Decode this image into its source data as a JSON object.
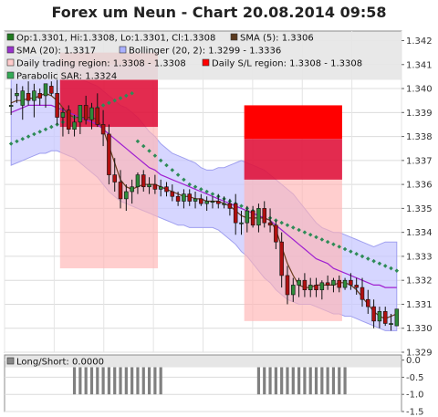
{
  "chart_data": [
    {
      "type": "candlestick",
      "title": "Forex um Neun - Chart 20.08.2014 09:58",
      "y_ticks": [
        "1.342",
        "1.341",
        "1.340",
        "1.339",
        "1.338",
        "1.337",
        "1.336",
        "1.335",
        "1.334",
        "1.333",
        "1.332",
        "1.331",
        "1.330",
        "1.329"
      ],
      "ylim": [
        1.329,
        1.3424
      ],
      "grid": true,
      "legend_position": "top",
      "legend": [
        {
          "text": "Op:1.3301, Hi:1.3308, Lo:1.3301, Cl:1.3308",
          "color": "#1f7a1f",
          "shape": "square"
        },
        {
          "text": "SMA (5): 1.3306",
          "color": "#5a3a1e",
          "shape": "square"
        },
        {
          "text": "SMA (20): 1.3317",
          "color": "#9933cc",
          "shape": "square"
        },
        {
          "text": "Bollinger (20, 2): 1.3299 - 1.3336",
          "color": "#aab0ff",
          "shape": "square"
        },
        {
          "text": "Daily trading region: 1.3308 - 1.3308",
          "color": "#ffcccc",
          "shape": "square"
        },
        {
          "text": "Daily S/L region: 1.3308 - 1.3308",
          "color": "#ff0000",
          "shape": "square"
        },
        {
          "text": "Parabolic SAR: 1.3324",
          "color": "#33aa55",
          "shape": "square"
        }
      ],
      "candles": [
        {
          "o": 1.3393,
          "h": 1.34,
          "l": 1.3389,
          "c": 1.3393
        },
        {
          "o": 1.3397,
          "h": 1.3402,
          "l": 1.3394,
          "c": 1.3398
        },
        {
          "o": 1.3393,
          "h": 1.3401,
          "l": 1.3387,
          "c": 1.3399
        },
        {
          "o": 1.3398,
          "h": 1.3403,
          "l": 1.3393,
          "c": 1.3395
        },
        {
          "o": 1.3395,
          "h": 1.3402,
          "l": 1.3388,
          "c": 1.3399
        },
        {
          "o": 1.3398,
          "h": 1.34,
          "l": 1.3393,
          "c": 1.3396
        },
        {
          "o": 1.3397,
          "h": 1.3401,
          "l": 1.3392,
          "c": 1.3402
        },
        {
          "o": 1.3401,
          "h": 1.3403,
          "l": 1.3397,
          "c": 1.3398
        },
        {
          "o": 1.3398,
          "h": 1.3407,
          "l": 1.3385,
          "c": 1.3388
        },
        {
          "o": 1.3388,
          "h": 1.3392,
          "l": 1.338,
          "c": 1.339
        },
        {
          "o": 1.3391,
          "h": 1.3393,
          "l": 1.3381,
          "c": 1.3383
        },
        {
          "o": 1.3383,
          "h": 1.3389,
          "l": 1.338,
          "c": 1.3386
        },
        {
          "o": 1.3386,
          "h": 1.3393,
          "l": 1.3381,
          "c": 1.3393
        },
        {
          "o": 1.3393,
          "h": 1.3397,
          "l": 1.3385,
          "c": 1.3387
        },
        {
          "o": 1.3387,
          "h": 1.3394,
          "l": 1.3383,
          "c": 1.3392
        },
        {
          "o": 1.3392,
          "h": 1.3398,
          "l": 1.3384,
          "c": 1.3385
        },
        {
          "o": 1.3385,
          "h": 1.3391,
          "l": 1.3376,
          "c": 1.3381
        },
        {
          "o": 1.3381,
          "h": 1.3385,
          "l": 1.336,
          "c": 1.3364
        },
        {
          "o": 1.3364,
          "h": 1.3371,
          "l": 1.3357,
          "c": 1.3361
        },
        {
          "o": 1.3361,
          "h": 1.3366,
          "l": 1.335,
          "c": 1.3354
        },
        {
          "o": 1.3354,
          "h": 1.336,
          "l": 1.3349,
          "c": 1.3357
        },
        {
          "o": 1.3357,
          "h": 1.3362,
          "l": 1.3352,
          "c": 1.3359
        },
        {
          "o": 1.3359,
          "h": 1.3365,
          "l": 1.3356,
          "c": 1.3364
        },
        {
          "o": 1.3364,
          "h": 1.3366,
          "l": 1.3357,
          "c": 1.3359
        },
        {
          "o": 1.3359,
          "h": 1.3363,
          "l": 1.3356,
          "c": 1.336
        },
        {
          "o": 1.336,
          "h": 1.3364,
          "l": 1.3356,
          "c": 1.3358
        },
        {
          "o": 1.3358,
          "h": 1.3362,
          "l": 1.3355,
          "c": 1.3359
        },
        {
          "o": 1.3359,
          "h": 1.3361,
          "l": 1.3355,
          "c": 1.3357
        },
        {
          "o": 1.3357,
          "h": 1.336,
          "l": 1.3353,
          "c": 1.3355
        },
        {
          "o": 1.3355,
          "h": 1.3357,
          "l": 1.3351,
          "c": 1.3353
        },
        {
          "o": 1.3353,
          "h": 1.3358,
          "l": 1.335,
          "c": 1.3356
        },
        {
          "o": 1.3356,
          "h": 1.3358,
          "l": 1.3351,
          "c": 1.3353
        },
        {
          "o": 1.3353,
          "h": 1.3357,
          "l": 1.335,
          "c": 1.3354
        },
        {
          "o": 1.3354,
          "h": 1.3356,
          "l": 1.3351,
          "c": 1.3352
        },
        {
          "o": 1.3352,
          "h": 1.3355,
          "l": 1.3349,
          "c": 1.3353
        },
        {
          "o": 1.3353,
          "h": 1.3355,
          "l": 1.335,
          "c": 1.3353
        },
        {
          "o": 1.3353,
          "h": 1.3356,
          "l": 1.335,
          "c": 1.3352
        },
        {
          "o": 1.3352,
          "h": 1.3355,
          "l": 1.335,
          "c": 1.3352
        },
        {
          "o": 1.3352,
          "h": 1.3354,
          "l": 1.3347,
          "c": 1.335
        },
        {
          "o": 1.3352,
          "h": 1.3356,
          "l": 1.3339,
          "c": 1.3344
        },
        {
          "o": 1.3344,
          "h": 1.3349,
          "l": 1.3339,
          "c": 1.3344
        },
        {
          "o": 1.3344,
          "h": 1.3351,
          "l": 1.334,
          "c": 1.3349
        },
        {
          "o": 1.3349,
          "h": 1.3351,
          "l": 1.3342,
          "c": 1.3343
        },
        {
          "o": 1.3343,
          "h": 1.3352,
          "l": 1.334,
          "c": 1.335
        },
        {
          "o": 1.335,
          "h": 1.3353,
          "l": 1.3342,
          "c": 1.3344
        },
        {
          "o": 1.3344,
          "h": 1.335,
          "l": 1.334,
          "c": 1.3343
        },
        {
          "o": 1.3343,
          "h": 1.3345,
          "l": 1.3333,
          "c": 1.3336
        },
        {
          "o": 1.3336,
          "h": 1.334,
          "l": 1.3317,
          "c": 1.3322
        },
        {
          "o": 1.3322,
          "h": 1.3326,
          "l": 1.331,
          "c": 1.3314
        },
        {
          "o": 1.3314,
          "h": 1.3321,
          "l": 1.3311,
          "c": 1.3318
        },
        {
          "o": 1.3318,
          "h": 1.3321,
          "l": 1.3313,
          "c": 1.332
        },
        {
          "o": 1.332,
          "h": 1.3323,
          "l": 1.3313,
          "c": 1.3316
        },
        {
          "o": 1.3316,
          "h": 1.3321,
          "l": 1.3313,
          "c": 1.3318
        },
        {
          "o": 1.3318,
          "h": 1.3321,
          "l": 1.3313,
          "c": 1.3316
        },
        {
          "o": 1.3316,
          "h": 1.332,
          "l": 1.3312,
          "c": 1.3319
        },
        {
          "o": 1.3319,
          "h": 1.3322,
          "l": 1.3316,
          "c": 1.3318
        },
        {
          "o": 1.3318,
          "h": 1.3321,
          "l": 1.3315,
          "c": 1.332
        },
        {
          "o": 1.332,
          "h": 1.3322,
          "l": 1.3315,
          "c": 1.3317
        },
        {
          "o": 1.3317,
          "h": 1.3321,
          "l": 1.3316,
          "c": 1.332
        },
        {
          "o": 1.332,
          "h": 1.3323,
          "l": 1.3316,
          "c": 1.3318
        },
        {
          "o": 1.3318,
          "h": 1.3321,
          "l": 1.3314,
          "c": 1.3317
        },
        {
          "o": 1.3317,
          "h": 1.3321,
          "l": 1.3309,
          "c": 1.3312
        },
        {
          "o": 1.3312,
          "h": 1.3316,
          "l": 1.3306,
          "c": 1.3309
        },
        {
          "o": 1.3309,
          "h": 1.3312,
          "l": 1.33,
          "c": 1.3303
        },
        {
          "o": 1.3303,
          "h": 1.3309,
          "l": 1.33,
          "c": 1.3307
        },
        {
          "o": 1.3307,
          "h": 1.3309,
          "l": 1.3301,
          "c": 1.3302
        },
        {
          "o": 1.3302,
          "h": 1.3306,
          "l": 1.3299,
          "c": 1.3302
        },
        {
          "o": 1.3301,
          "h": 1.3308,
          "l": 1.3301,
          "c": 1.3308
        }
      ],
      "sma5": [
        1.3394,
        1.3395,
        1.3395,
        1.3396,
        1.3396,
        1.3397,
        1.3398,
        1.3397,
        1.3395,
        1.3392,
        1.3389,
        1.3388,
        1.3388,
        1.3388,
        1.3388,
        1.3387,
        1.3383,
        1.3376,
        1.3369,
        1.3362,
        1.3359,
        1.3358,
        1.3359,
        1.336,
        1.336,
        1.336,
        1.3359,
        1.3358,
        1.3357,
        1.3356,
        1.3355,
        1.3355,
        1.3354,
        1.3354,
        1.3353,
        1.3353,
        1.3353,
        1.3352,
        1.3351,
        1.3349,
        1.3347,
        1.3346,
        1.3346,
        1.3346,
        1.3346,
        1.3345,
        1.3341,
        1.3334,
        1.3327,
        1.3322,
        1.3318,
        1.3317,
        1.3317,
        1.3318,
        1.3318,
        1.3318,
        1.3318,
        1.3319,
        1.3319,
        1.3318,
        1.3316,
        1.3313,
        1.331,
        1.3307,
        1.3305,
        1.3304,
        1.3305,
        1.3306
      ],
      "sma20": [
        1.339,
        1.3391,
        1.3392,
        1.3393,
        1.3393,
        1.3393,
        1.3393,
        1.3393,
        1.3392,
        1.3391,
        1.339,
        1.3389,
        1.3388,
        1.3387,
        1.3386,
        1.3385,
        1.3383,
        1.3381,
        1.3379,
        1.3377,
        1.3375,
        1.3373,
        1.3371,
        1.3369,
        1.3367,
        1.3366,
        1.3364,
        1.3363,
        1.3362,
        1.3361,
        1.336,
        1.3359,
        1.3358,
        1.3357,
        1.3356,
        1.3355,
        1.3354,
        1.3353,
        1.3352,
        1.3351,
        1.335,
        1.3349,
        1.3348,
        1.3347,
        1.3346,
        1.3345,
        1.3343,
        1.3341,
        1.3339,
        1.3337,
        1.3335,
        1.3333,
        1.3331,
        1.3329,
        1.3328,
        1.3327,
        1.3325,
        1.3324,
        1.3323,
        1.3322,
        1.3321,
        1.332,
        1.3319,
        1.3318,
        1.3318,
        1.3317,
        1.3317,
        1.3317
      ],
      "boll_upper": [
        1.3408,
        1.341,
        1.3412,
        1.3413,
        1.3413,
        1.3413,
        1.3412,
        1.3411,
        1.341,
        1.3409,
        1.3407,
        1.3405,
        1.3404,
        1.3403,
        1.3402,
        1.3401,
        1.3399,
        1.3397,
        1.3395,
        1.3393,
        1.3392,
        1.339,
        1.3388,
        1.3385,
        1.3382,
        1.338,
        1.3377,
        1.3375,
        1.3373,
        1.3372,
        1.3371,
        1.337,
        1.3369,
        1.3367,
        1.3366,
        1.3366,
        1.3367,
        1.3367,
        1.3368,
        1.3369,
        1.337,
        1.3369,
        1.3368,
        1.3367,
        1.3366,
        1.3364,
        1.3362,
        1.336,
        1.3358,
        1.3356,
        1.3353,
        1.335,
        1.3347,
        1.3344,
        1.3342,
        1.3341,
        1.334,
        1.334,
        1.3339,
        1.3338,
        1.3337,
        1.3336,
        1.3335,
        1.3334,
        1.3335,
        1.3336,
        1.3336,
        1.3336
      ],
      "boll_lower": [
        1.3368,
        1.3369,
        1.337,
        1.3371,
        1.3372,
        1.3373,
        1.3373,
        1.3374,
        1.3374,
        1.3373,
        1.3372,
        1.3371,
        1.3369,
        1.3367,
        1.3365,
        1.3363,
        1.336,
        1.3357,
        1.3355,
        1.3353,
        1.3352,
        1.3351,
        1.335,
        1.3349,
        1.3348,
        1.3347,
        1.3346,
        1.3345,
        1.3344,
        1.3343,
        1.3343,
        1.3342,
        1.3342,
        1.3342,
        1.3342,
        1.3342,
        1.3341,
        1.3339,
        1.3337,
        1.3335,
        1.3332,
        1.333,
        1.3327,
        1.3324,
        1.3321,
        1.3319,
        1.3316,
        1.3314,
        1.3312,
        1.3311,
        1.331,
        1.331,
        1.331,
        1.3309,
        1.3308,
        1.3307,
        1.3306,
        1.3306,
        1.3305,
        1.3305,
        1.3304,
        1.3303,
        1.3302,
        1.3301,
        1.33,
        1.3299,
        1.3299,
        1.3299
      ],
      "sar": [
        1.3377,
        1.3378,
        1.3379,
        1.338,
        1.3381,
        1.3382,
        1.3383,
        1.3384,
        1.3385,
        1.3386,
        1.3387,
        1.3388,
        1.3389,
        1.339,
        1.3391,
        1.3392,
        1.3393,
        1.3394,
        1.3395,
        1.3396,
        1.3397,
        1.3398,
        1.3378,
        1.3376,
        1.3374,
        1.3372,
        1.337,
        1.3368,
        1.3366,
        1.3364,
        1.3362,
        1.336,
        1.3359,
        1.3358,
        1.3357,
        1.3356,
        1.3355,
        1.3354,
        1.3353,
        1.3352,
        1.3351,
        1.335,
        1.3349,
        1.3348,
        1.3347,
        1.3346,
        1.3345,
        1.3344,
        1.3343,
        1.3342,
        1.3341,
        1.334,
        1.3339,
        1.3338,
        1.3337,
        1.3336,
        1.3335,
        1.3334,
        1.3333,
        1.3332,
        1.3331,
        1.333,
        1.3329,
        1.3328,
        1.3327,
        1.3326,
        1.3325,
        1.3324
      ],
      "regions": [
        {
          "from": 9,
          "to": 25,
          "trading": [
            1.3325,
            1.3384
          ],
          "sl_low": [
            1.3384,
            1.341
          ],
          "sl_high": [
            1.341,
            1.3415
          ]
        },
        {
          "from": 41,
          "to": 57,
          "trading": [
            1.3303,
            1.3362
          ],
          "sl_low": [
            1.3362,
            1.3379
          ],
          "sl_high": [
            1.3379,
            1.3393
          ]
        }
      ]
    },
    {
      "type": "bar",
      "legend": [
        {
          "text": "Long/Short: 0.0000",
          "color": "#888888",
          "shape": "square"
        }
      ],
      "y_ticks": [
        "0.0",
        "-0.5",
        "-1.0",
        "-1.5"
      ],
      "ylim": [
        -1.5,
        0.15
      ],
      "bars_from": 11,
      "values": [
        -1,
        -1,
        -1,
        -1,
        -1,
        -1,
        -1,
        -1,
        -1,
        -1,
        -1,
        -1,
        -1,
        -1,
        -1,
        -1,
        0,
        0,
        0,
        0,
        0,
        0,
        0,
        0,
        0,
        0,
        0,
        0,
        0,
        0,
        0,
        0,
        -1,
        -1,
        -1,
        -1,
        -1,
        -1,
        -1,
        -1,
        -1,
        -1,
        -1,
        -1,
        -1,
        -1,
        -1,
        -1
      ]
    }
  ]
}
